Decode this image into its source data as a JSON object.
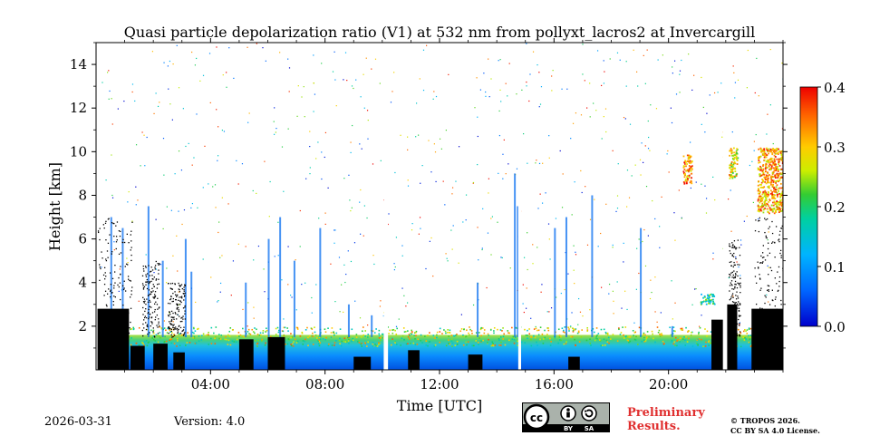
{
  "chart_data": {
    "type": "heatmap",
    "title": "Quasi particle depolarization ratio (V1) at 532 nm from pollyxt_lacros2 at Invercargill",
    "xlabel": "Time [UTC]",
    "ylabel": "Height [km]",
    "xlim": [
      0,
      24
    ],
    "ylim": [
      0,
      15
    ],
    "x_ticks": [
      4,
      8,
      12,
      16,
      20
    ],
    "x_tick_labels": [
      "04:00",
      "08:00",
      "12:00",
      "16:00",
      "20:00"
    ],
    "y_ticks": [
      2,
      4,
      6,
      8,
      10,
      12,
      14
    ],
    "y_tick_labels": [
      "2",
      "4",
      "6",
      "8",
      "10",
      "12",
      "14"
    ],
    "colorbar": {
      "min": 0.0,
      "max": 0.4,
      "ticks": [
        0.0,
        0.1,
        0.2,
        0.3,
        0.4
      ],
      "tick_labels": [
        "0.0",
        "0.1",
        "0.2",
        "0.3",
        "0.4"
      ],
      "colormap": "jet"
    },
    "boundary_layer_top_km": 1.5,
    "features": [
      {
        "name": "boundary-layer-aerosol",
        "time_start": 0.1,
        "time_end": 24.0,
        "height_bottom": 0.0,
        "height_top": 1.6,
        "value": 0.08
      },
      {
        "name": "elevated-layer",
        "time_start": 21.1,
        "time_end": 21.6,
        "height_bottom": 3.0,
        "height_top": 3.5,
        "value": 0.18
      },
      {
        "name": "cirrus-cloud-a",
        "time_start": 20.5,
        "time_end": 20.8,
        "height_bottom": 8.5,
        "height_top": 9.9,
        "value": 0.33
      },
      {
        "name": "cirrus-cloud-b",
        "time_start": 22.1,
        "time_end": 22.4,
        "height_bottom": 8.8,
        "height_top": 10.2,
        "value": 0.28
      },
      {
        "name": "cirrus-cloud-c",
        "time_start": 23.1,
        "time_end": 24.0,
        "height_bottom": 7.2,
        "height_top": 10.2,
        "value": 0.32
      }
    ],
    "data_gaps": [
      {
        "time_start": 10.05,
        "time_end": 10.2
      },
      {
        "time_start": 14.75,
        "time_end": 14.85
      },
      {
        "time_start": 21.9,
        "time_end": 22.05
      }
    ]
  },
  "colors": {
    "low": "#0000cc",
    "mid": "#00cc66",
    "high": "#ff3300",
    "missing": "#000000",
    "prelim": "#e03030"
  },
  "footer": {
    "date": "2026-03-31",
    "version": "Version: 4.0",
    "preliminary_line1": "Preliminary",
    "preliminary_line2": "Results.",
    "copyright_line1": "© TROPOS 2026.",
    "copyright_line2": "CC BY SA 4.0 License.",
    "badge_by": "BY",
    "badge_sa": "SA"
  }
}
